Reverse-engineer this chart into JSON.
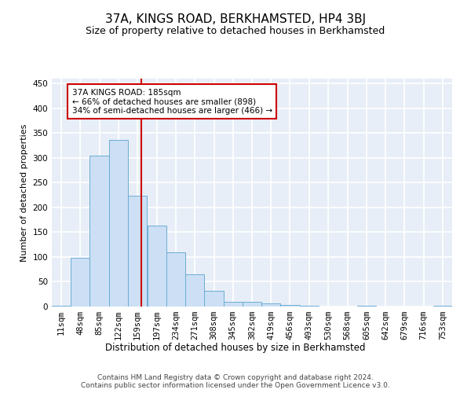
{
  "title": "37A, KINGS ROAD, BERKHAMSTED, HP4 3BJ",
  "subtitle": "Size of property relative to detached houses in Berkhamsted",
  "xlabel": "Distribution of detached houses by size in Berkhamsted",
  "ylabel": "Number of detached properties",
  "bar_color": "#ccdff4",
  "bar_edge_color": "#6baed6",
  "background_color": "#e8eef7",
  "grid_color": "#ffffff",
  "vline_x": 185,
  "vline_color": "#cc0000",
  "annotation_text": "37A KINGS ROAD: 185sqm\n← 66% of detached houses are smaller (898)\n34% of semi-detached houses are larger (466) →",
  "annotation_box_color": "#cc0000",
  "bin_edges": [
    11,
    48,
    85,
    122,
    159,
    197,
    234,
    271,
    308,
    345,
    382,
    419,
    456,
    493,
    530,
    568,
    605,
    642,
    679,
    716,
    753
  ],
  "bar_heights": [
    2,
    98,
    305,
    336,
    224,
    163,
    109,
    65,
    31,
    10,
    10,
    7,
    3,
    2,
    0,
    0,
    2,
    0,
    0,
    0,
    1
  ],
  "ylim": [
    0,
    460
  ],
  "yticks": [
    0,
    50,
    100,
    150,
    200,
    250,
    300,
    350,
    400,
    450
  ],
  "xlim": [
    11,
    790
  ],
  "footer_text": "Contains HM Land Registry data © Crown copyright and database right 2024.\nContains public sector information licensed under the Open Government Licence v3.0.",
  "title_fontsize": 11,
  "subtitle_fontsize": 9,
  "xlabel_fontsize": 8.5,
  "ylabel_fontsize": 8,
  "tick_fontsize": 7.5,
  "footer_fontsize": 6.5,
  "annot_fontsize": 7.5
}
